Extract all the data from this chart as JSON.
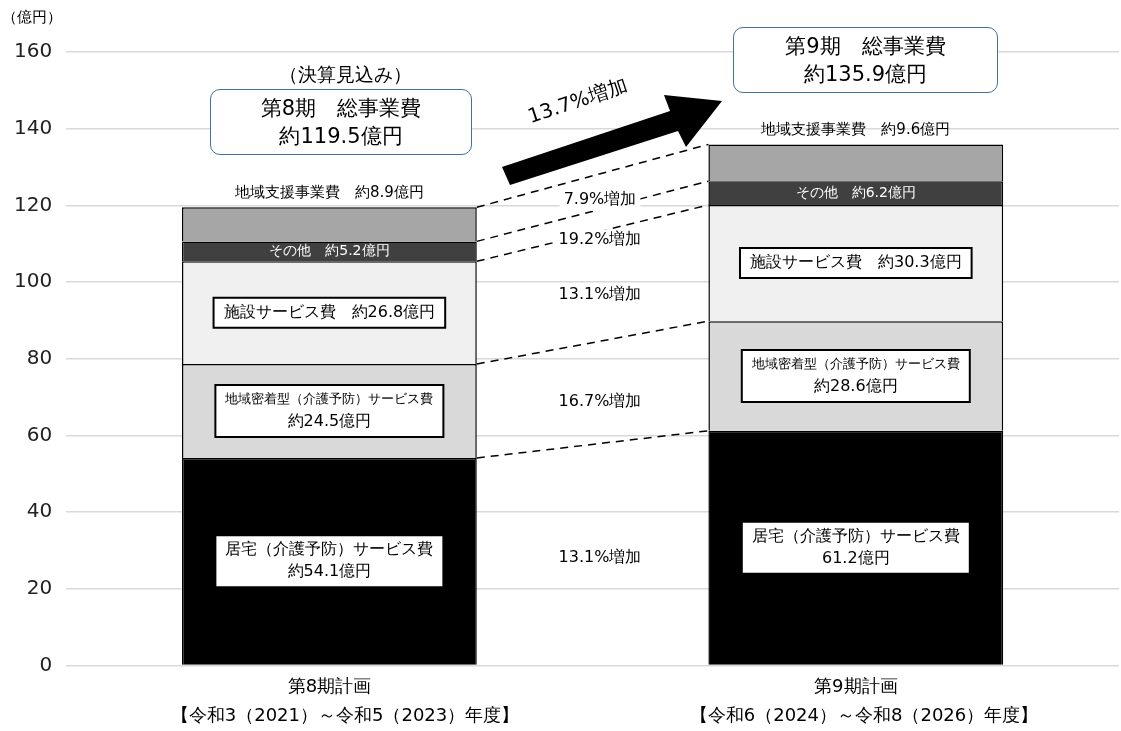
{
  "chart_data": {
    "type": "bar",
    "stacked": true,
    "ylabel": "（億円）",
    "categories": [
      "第8期計画",
      "第9期計画"
    ],
    "series": [
      {
        "name": "居宅（介護予防）サービス費",
        "color": "#000000",
        "values": [
          54.1,
          61.2
        ],
        "value_labels": [
          "約54.1億円",
          "61.2億円"
        ]
      },
      {
        "name": "地域密着型（介護予防）サービス費",
        "color": "#d9d9d9",
        "values": [
          24.5,
          28.6
        ],
        "value_labels": [
          "約24.5億円",
          "約28.6億円"
        ]
      },
      {
        "name": "施設サービス費",
        "color": "#f0f0f0",
        "values": [
          26.8,
          30.3
        ],
        "value_labels": [
          "約26.8億円",
          "約30.3億円"
        ]
      },
      {
        "name": "その他",
        "color": "#404040",
        "values": [
          5.2,
          6.2
        ],
        "value_labels": [
          "約5.2億円",
          "約6.2億円"
        ]
      },
      {
        "name": "地域支援事業費",
        "color": "#a6a6a6",
        "values": [
          8.9,
          9.6
        ],
        "value_labels": [
          "約8.9億円",
          "約9.6億円"
        ]
      }
    ],
    "ylim": [
      0,
      160
    ],
    "yticks": [
      0,
      20,
      40,
      60,
      80,
      100,
      120,
      140,
      160
    ],
    "grid": "y",
    "annotations": [
      "（決算見込み）",
      "第8期　総事業費",
      "約119.5億円",
      "第9期　総事業費",
      "約135.9億円",
      "13.7%増加",
      "7.9%増加",
      "19.2%増加",
      "13.1%増加",
      "16.7%増加",
      "13.1%増加",
      "【令和3（2021）～令和5（2023）年度】",
      "【令和6（2024）～令和8（2026）年度】"
    ]
  }
}
